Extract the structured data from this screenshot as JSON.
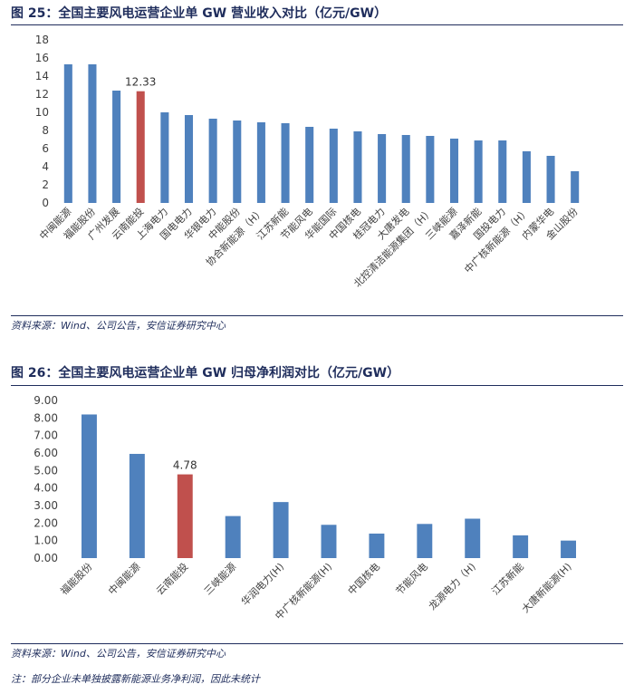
{
  "figure1": {
    "title": "图 25：全国主要风电运营企业单 GW 营业收入对比（亿元/GW）",
    "source": "资料来源：Wind、公司公告，安信证券研究中心"
  },
  "figure2": {
    "title": "图 26：全国主要风电运营企业单 GW 归母净利润对比（亿元/GW）",
    "source": "资料来源：Wind、公司公告，安信证券研究中心",
    "note": "注：部分企业未单独披露新能源业务净利润，因此未统计"
  },
  "colors": {
    "bar": "#4f81bd",
    "highlight": "#c0504d",
    "title": "#1f2d5c",
    "axis_text": "#404040"
  },
  "chart_data": [
    {
      "type": "bar",
      "title": "",
      "xlabel": "",
      "ylabel": "",
      "ylim": [
        0,
        18
      ],
      "yticks": [
        "0",
        "2",
        "4",
        "6",
        "8",
        "10",
        "12",
        "14",
        "16",
        "18"
      ],
      "grid": false,
      "categories": [
        "中闽能源",
        "福能股份",
        "广州发展",
        "云南能投",
        "上海电力",
        "国电电力",
        "华银电力",
        "中能股份",
        "协合新能源（H）",
        "江苏新能",
        "节能风电",
        "华能国际",
        "中国核电",
        "桂冠电力",
        "大唐发电",
        "北控清洁能源集团（H）",
        "三峡能源",
        "嘉泽新能",
        "国投电力",
        "中广核新能源（H）",
        "内蒙华电",
        "金山股份"
      ],
      "values": [
        15.3,
        15.3,
        12.4,
        12.33,
        10.0,
        9.7,
        9.3,
        9.1,
        8.9,
        8.8,
        8.4,
        8.2,
        7.9,
        7.6,
        7.5,
        7.4,
        7.1,
        6.9,
        6.9,
        5.7,
        5.2,
        3.5
      ],
      "highlight_index": 3,
      "data_labels": [
        {
          "index": 3,
          "text": "12.33"
        }
      ]
    },
    {
      "type": "bar",
      "title": "",
      "xlabel": "",
      "ylabel": "",
      "ylim": [
        0,
        9
      ],
      "yticks": [
        "0.00",
        "1.00",
        "2.00",
        "3.00",
        "4.00",
        "5.00",
        "6.00",
        "7.00",
        "8.00",
        "9.00"
      ],
      "grid": false,
      "categories": [
        "福能股份",
        "中闽能源",
        "云南能投",
        "三峡能源",
        "华润电力(H)",
        "中广核新能源(H)",
        "中国核电",
        "节能风电",
        "龙源电力（H)",
        "江苏新能",
        "大唐新能源(H)"
      ],
      "values": [
        8.2,
        5.95,
        4.78,
        2.4,
        3.2,
        1.9,
        1.4,
        1.95,
        2.25,
        1.3,
        1.0
      ],
      "highlight_index": 2,
      "data_labels": [
        {
          "index": 2,
          "text": "4.78"
        }
      ]
    }
  ]
}
